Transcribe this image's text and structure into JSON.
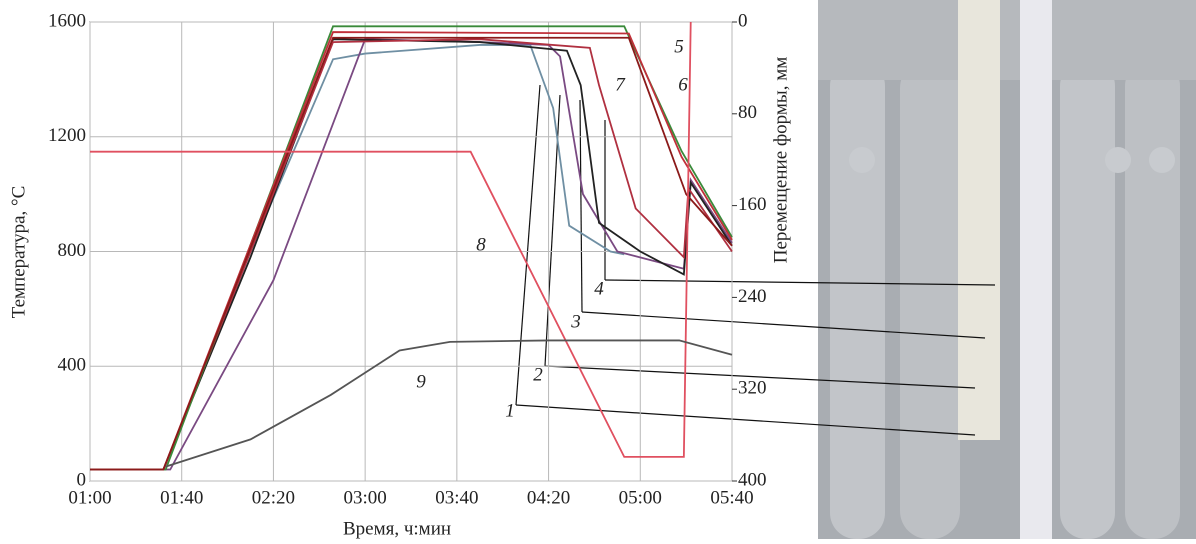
{
  "chart_data": {
    "type": "line",
    "xlabel": "Время, ч:мин",
    "ylabel": "Температура, °C",
    "y2label": "Перемещение формы, мм",
    "xlim": [
      60,
      340
    ],
    "xticks": [
      {
        "value": 60,
        "label": "01:00"
      },
      {
        "value": 100,
        "label": "01:40"
      },
      {
        "value": 140,
        "label": "02:20"
      },
      {
        "value": 180,
        "label": "03:00"
      },
      {
        "value": 220,
        "label": "03:40"
      },
      {
        "value": 260,
        "label": "04:20"
      },
      {
        "value": 300,
        "label": "05:00"
      },
      {
        "value": 340,
        "label": "05:40"
      }
    ],
    "ylim": [
      0,
      1600
    ],
    "yticks": [
      0,
      400,
      800,
      1200,
      1600
    ],
    "y2lim": [
      400,
      0
    ],
    "y2ticks": [
      0,
      80,
      160,
      240,
      320,
      400
    ],
    "grid": true,
    "series": [
      {
        "name": "1",
        "color": "#6f8fa3",
        "x": [
          60,
          92,
          130,
          166,
          180,
          230,
          252,
          262,
          269,
          287,
          293
        ],
        "values": [
          40,
          40,
          800,
          1470,
          1490,
          1520,
          1520,
          1300,
          890,
          800,
          790
        ]
      },
      {
        "name": "2",
        "color": "#7a4a82",
        "x": [
          60,
          95,
          140,
          180,
          230,
          260,
          265,
          275,
          290,
          319,
          322,
          340
        ],
        "values": [
          40,
          40,
          700,
          1540,
          1530,
          1520,
          1480,
          1000,
          800,
          740,
          1050,
          830
        ]
      },
      {
        "name": "3",
        "color": "#222222",
        "x": [
          60,
          92,
          130,
          166,
          230,
          268,
          274,
          282,
          300,
          319,
          322,
          340
        ],
        "values": [
          40,
          40,
          780,
          1540,
          1530,
          1500,
          1380,
          900,
          800,
          720,
          1040,
          820
        ]
      },
      {
        "name": "4",
        "color": "#b03040",
        "x": [
          60,
          92,
          130,
          166,
          230,
          278,
          282,
          298,
          319,
          321,
          340
        ],
        "values": [
          40,
          40,
          800,
          1530,
          1540,
          1510,
          1380,
          950,
          780,
          1020,
          800
        ]
      },
      {
        "name": "5",
        "color": "#3a8a3a",
        "x": [
          60,
          93,
          166,
          293,
          318,
          340
        ],
        "values": [
          40,
          40,
          1585,
          1585,
          1150,
          850
        ]
      },
      {
        "name": "6",
        "color": "#c0303a",
        "x": [
          60,
          92,
          166,
          295,
          318,
          340
        ],
        "values": [
          40,
          40,
          1565,
          1560,
          1130,
          840
        ]
      },
      {
        "name": "7",
        "color": "#8b1a1a",
        "x": [
          60,
          92,
          166,
          295,
          320,
          340
        ],
        "values": [
          40,
          40,
          1545,
          1545,
          1000,
          820
        ]
      },
      {
        "name": "8",
        "color": "#e05060",
        "axis": "y2",
        "x": [
          60,
          226,
          293,
          319,
          322
        ],
        "values": [
          113,
          113,
          379,
          379,
          0
        ]
      },
      {
        "name": "9",
        "color": "#555555",
        "x": [
          93,
          130,
          165,
          195,
          217,
          260,
          317,
          340
        ],
        "values": [
          50,
          145,
          300,
          455,
          485,
          490,
          490,
          440
        ]
      }
    ]
  }
}
